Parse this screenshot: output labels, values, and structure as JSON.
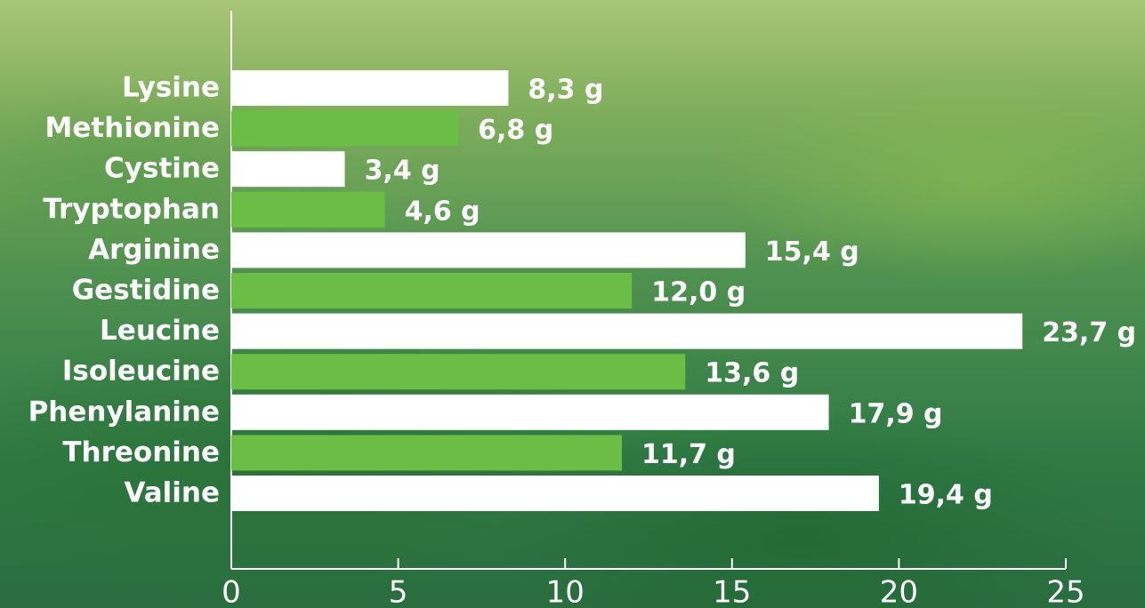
{
  "chart_data": {
    "type": "bar",
    "orientation": "horizontal",
    "categories": [
      "Lysine",
      "Methionine",
      "Cystine",
      "Tryptophan",
      "Arginine",
      "Gestidine",
      "Leucine",
      "Isoleucine",
      "Phenylanine",
      "Threonine",
      "Valine"
    ],
    "values": [
      8.3,
      6.8,
      3.4,
      4.6,
      15.4,
      12.0,
      23.7,
      13.6,
      17.9,
      11.7,
      19.4
    ],
    "value_labels": [
      "8,3 g",
      "6,8 g",
      "3,4 g",
      "4,6 g",
      "15,4 g",
      "12,0 g",
      "23,7 g",
      "13,6 g",
      "17,9 g",
      "11,7 g",
      "19,4 g"
    ],
    "colors": [
      "#ffffff",
      "#6cbd45",
      "#ffffff",
      "#6cbd45",
      "#ffffff",
      "#6cbd45",
      "#ffffff",
      "#6cbd45",
      "#ffffff",
      "#6cbd45",
      "#ffffff"
    ],
    "xlim": [
      0,
      25
    ],
    "xticks": [
      0,
      5,
      10,
      15,
      20,
      25
    ]
  }
}
